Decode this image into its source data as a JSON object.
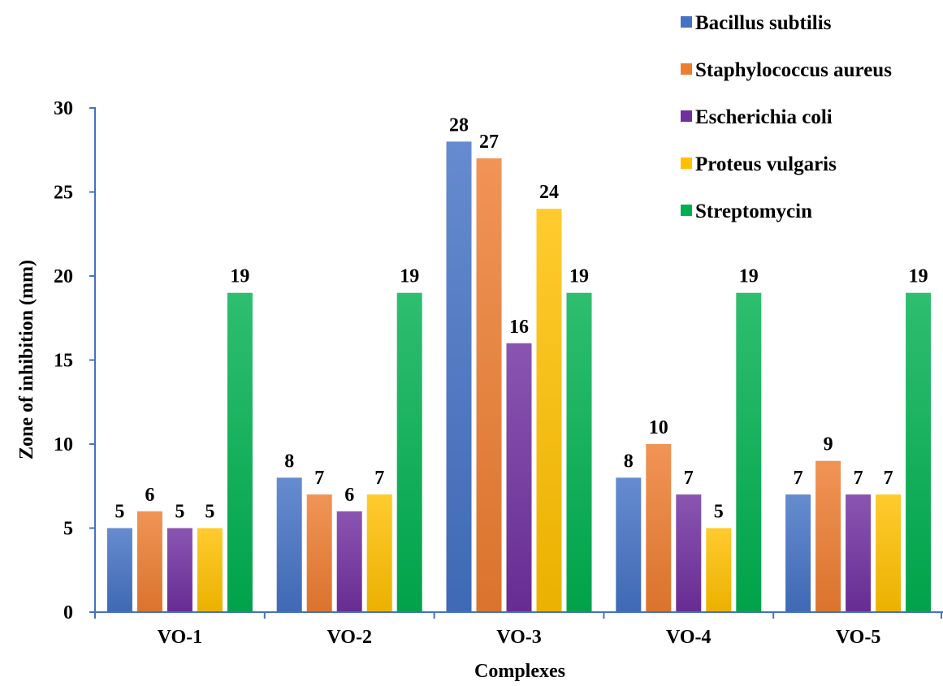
{
  "chart_data": {
    "type": "bar",
    "title": "",
    "xlabel": "Complexes",
    "ylabel": "Zone of inhibition (mm)",
    "ylim": [
      0,
      30
    ],
    "yticks": [
      0,
      5,
      10,
      15,
      20,
      25,
      30
    ],
    "grid": false,
    "legend_position": "top-right",
    "categories": [
      "VO-1",
      "VO-2",
      "VO-3",
      "VO-4",
      "VO-5"
    ],
    "series": [
      {
        "name": "Bacillus subtilis",
        "color": "#4472C4",
        "values": [
          5,
          8,
          28,
          8,
          7
        ]
      },
      {
        "name": "Staphylococcus aureus",
        "color": "#ED7D31",
        "values": [
          6,
          7,
          27,
          10,
          9
        ]
      },
      {
        "name": "Escherichia coli",
        "color": "#7030A0",
        "values": [
          5,
          6,
          16,
          7,
          7
        ]
      },
      {
        "name": "Proteus vulgaris",
        "color": "#FFC000",
        "values": [
          5,
          7,
          24,
          5,
          7
        ]
      },
      {
        "name": "Streptomycin",
        "color": "#00B050",
        "values": [
          19,
          19,
          19,
          19,
          19
        ]
      }
    ],
    "data_labels": true
  }
}
